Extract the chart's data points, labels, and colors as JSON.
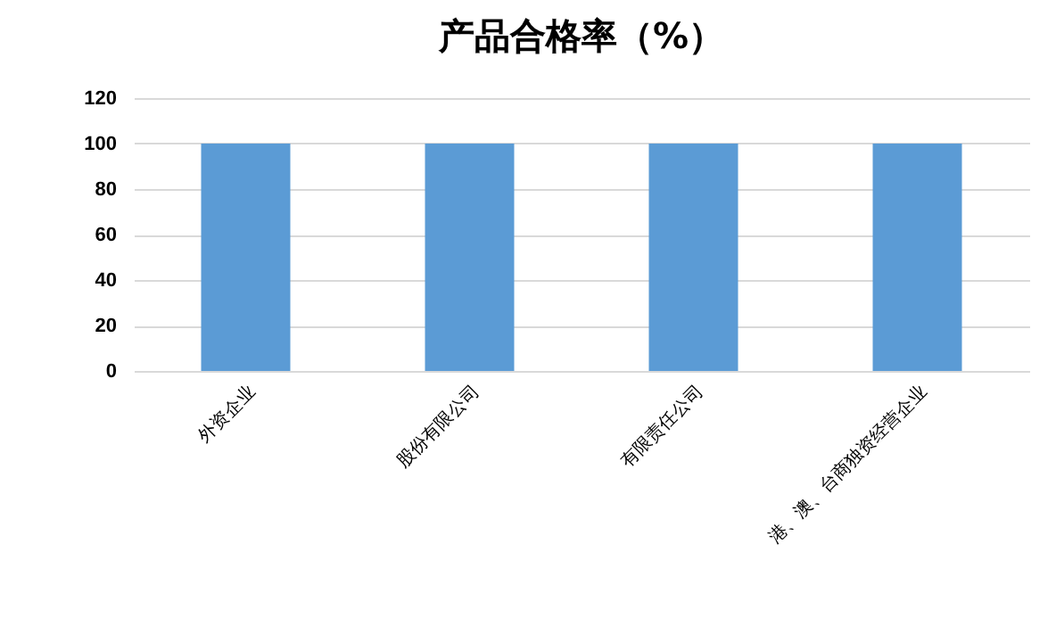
{
  "chart_data": {
    "type": "bar",
    "title": "产品合格率（%）",
    "categories": [
      "外资企业",
      "股份有限公司",
      "有限责任公司",
      "港、澳、台商独资经营企业"
    ],
    "values": [
      100,
      100,
      100,
      100
    ],
    "color": "#5b9bd5",
    "ylim": [
      0,
      120
    ],
    "yticks": [
      0,
      20,
      40,
      60,
      80,
      100,
      120
    ],
    "grid": "y"
  }
}
